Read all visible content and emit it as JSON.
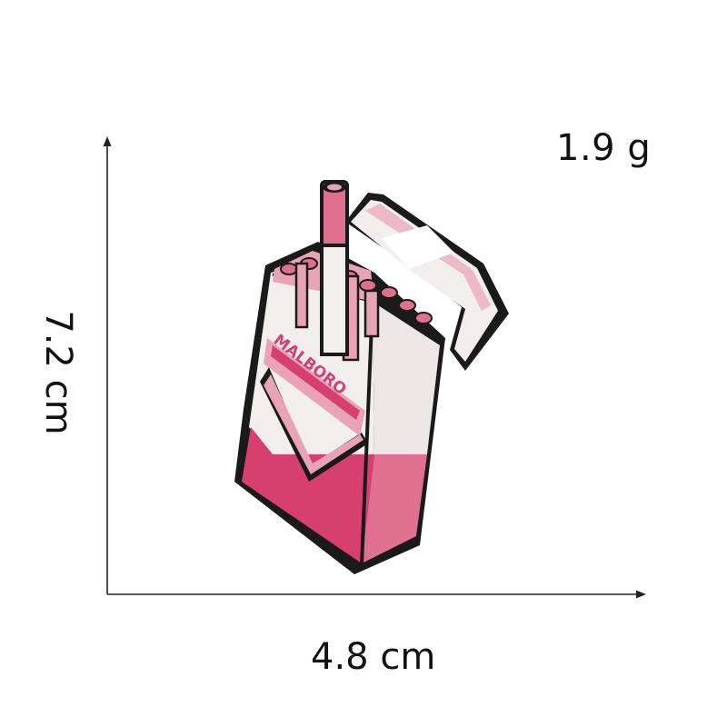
{
  "dimensions": {
    "weight": "1.9 g",
    "width": "4.8 cm",
    "height": "7.2 cm"
  },
  "product": {
    "brand_text": "MALBORO"
  },
  "colors": {
    "outline": "#1a1a1a",
    "pink_dark": "#d63f70",
    "pink_mid": "#e0708f",
    "pink_light": "#e9a3b8",
    "white_stitch": "#f3eeee"
  }
}
